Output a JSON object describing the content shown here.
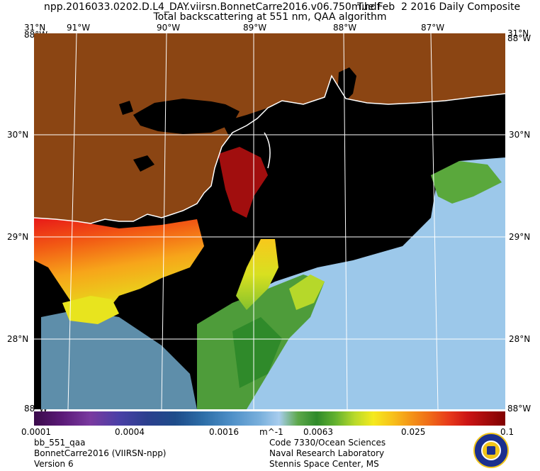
{
  "title": {
    "file": "npp.2016033.0202.D.L4_DAY.viirsn.BonnetCarre2016.v06.750m.hdf",
    "date": "Tue Feb  2 2016 Daily Composite",
    "product": "Total backscattering at 551 nm, QAA algorithm"
  },
  "axes": {
    "top_left_lat": "31°N",
    "top_right_lat": "31°N",
    "top_left_lat2": "88°W",
    "top_right_lon": "88°W",
    "lon_labels": [
      "91°W",
      "90°W",
      "89°W",
      "88°W",
      "87°W"
    ],
    "lat_labels": [
      "30°N",
      "29°N",
      "28°N"
    ],
    "bottom_left": "88°W",
    "bottom_right": "88°W"
  },
  "colorbar": {
    "labels": [
      "0.0001",
      "0.0004",
      "0.0016",
      "m^-1",
      "0.0063",
      "0.025",
      "0.1"
    ],
    "colors": [
      "#3a0a4a",
      "#2b3f8e",
      "#a8cdee",
      "#2f8a2a",
      "#f5ea1e",
      "#ef6a18",
      "#800000"
    ]
  },
  "footer": {
    "left": [
      "bb_551_qaa",
      "BonnetCarre2016 (VIIRSN-npp)",
      "Version 6"
    ],
    "right": [
      "Code 7330/Ocean Sciences",
      "Naval Research Laboratory",
      "Stennis Space Center, MS"
    ]
  },
  "map_colors": {
    "land": "#8b4513",
    "water_no_data": "#000000",
    "coast": "#ffffff",
    "grid": "#ffffff"
  }
}
